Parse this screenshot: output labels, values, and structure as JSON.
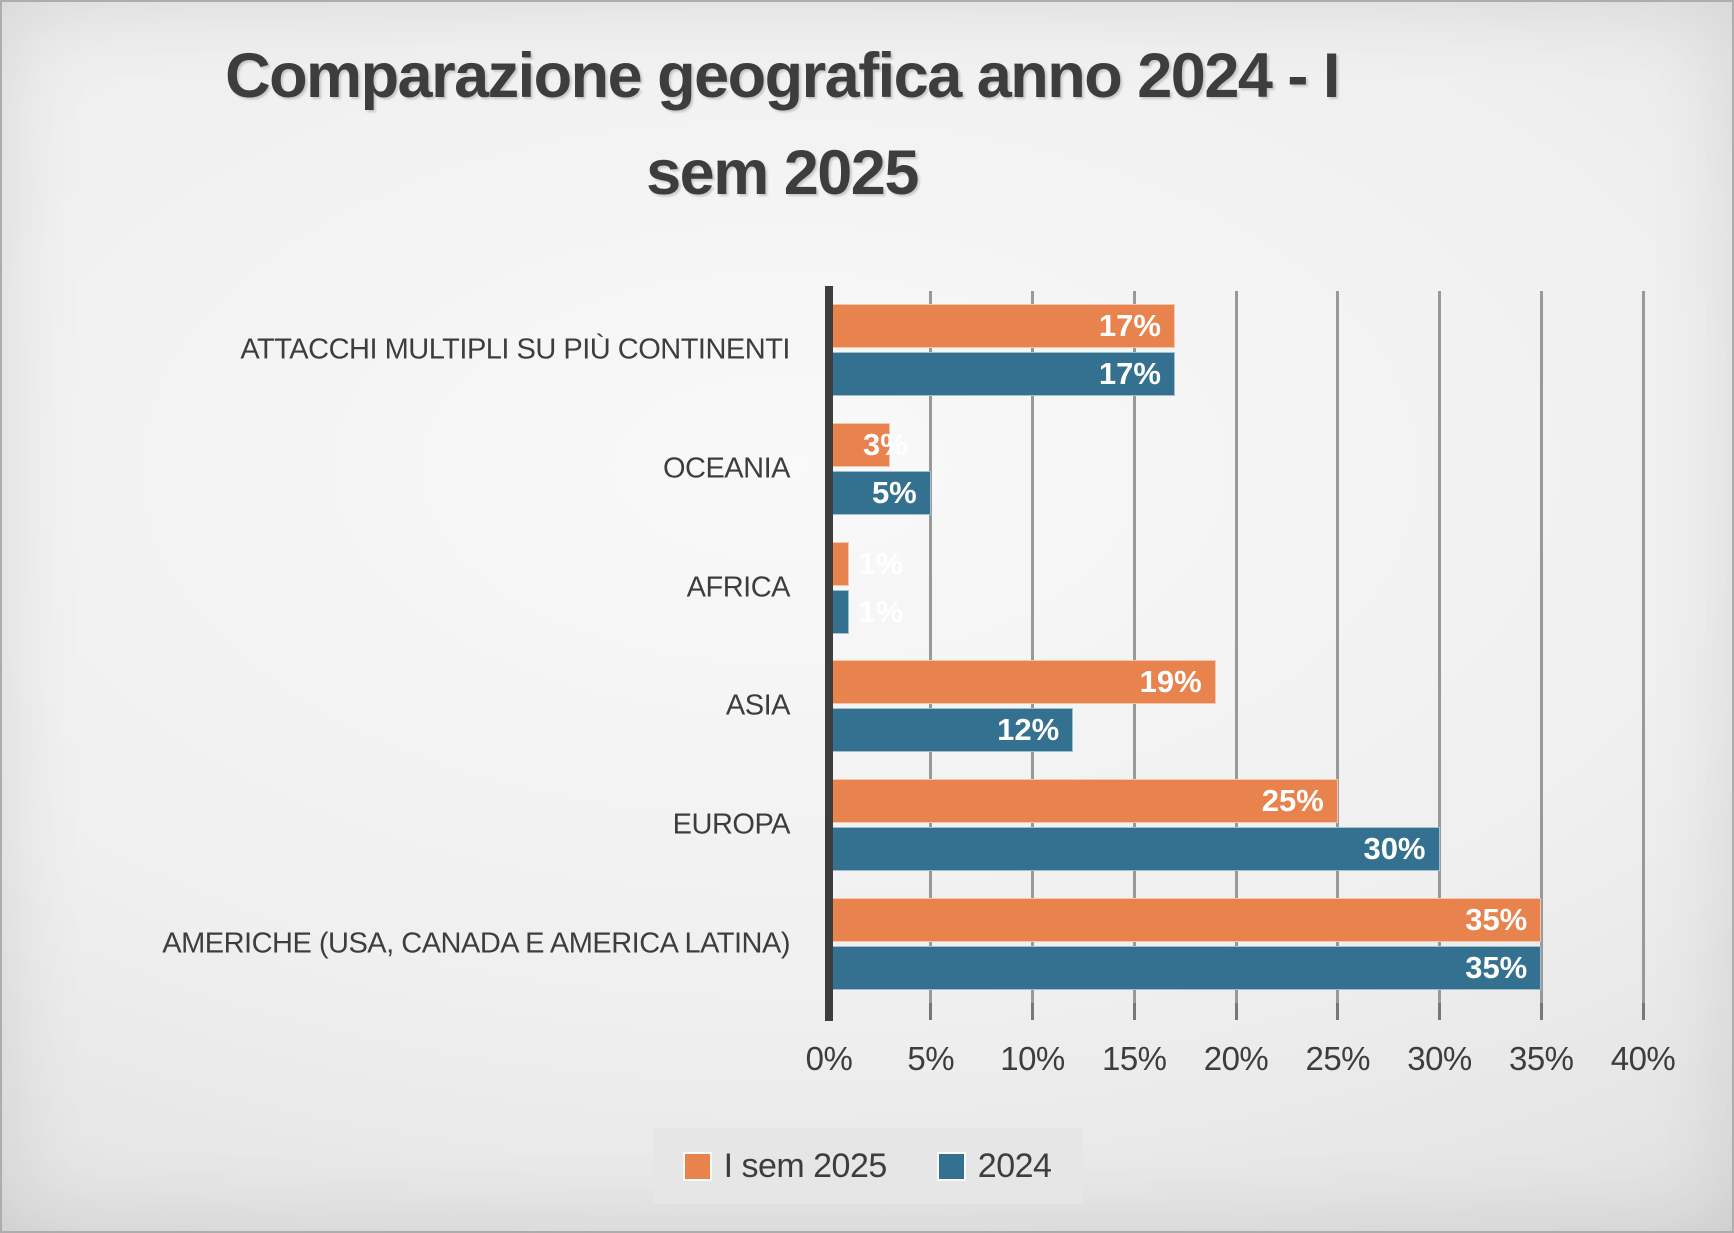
{
  "title": {
    "line1": "Comparazione geografica anno 2024 - I",
    "line2": "sem 2025"
  },
  "chart_data": {
    "type": "bar",
    "orientation": "horizontal",
    "title": "Comparazione geografica anno 2024 - I sem 2025",
    "categories": [
      "ATTACCHI MULTIPLI SU PIÙ CONTINENTI",
      "OCEANIA",
      "AFRICA",
      "ASIA",
      "EUROPA",
      "AMERICHE (USA, CANADA E AMERICA LATINA)"
    ],
    "series": [
      {
        "name": "I sem 2025",
        "color": "#E8834E",
        "values": [
          17,
          3,
          1,
          19,
          25,
          35
        ],
        "labels": [
          "17%",
          "3%",
          "1%",
          "19%",
          "25%",
          "35%"
        ]
      },
      {
        "name": "2024",
        "color": "#34708F",
        "values": [
          17,
          5,
          1,
          12,
          30,
          35
        ],
        "labels": [
          "17%",
          "5%",
          "1%",
          "12%",
          "30%",
          "35%"
        ]
      }
    ],
    "xlim": [
      0,
      40
    ],
    "x_tick_step": 5,
    "x_ticks": [
      "0%",
      "5%",
      "10%",
      "15%",
      "20%",
      "25%",
      "30%",
      "35%",
      "40%"
    ],
    "grid": true,
    "legend_position": "bottom",
    "value_label_color": "#FFFFFF"
  },
  "legend": {
    "entries": [
      {
        "label": "I sem 2025",
        "color": "#E8834E"
      },
      {
        "label": "2024",
        "color": "#34708F"
      }
    ]
  },
  "colors": {
    "background_center": "#f9f9f9",
    "background_edge": "#cccccc",
    "text": "#3d3d3d",
    "gridline": "#999999",
    "axis_line": "#3d3d3d",
    "tick": "#777777",
    "legend_background": "#e6e6e6",
    "series_orange": "#E8834E",
    "series_blue": "#34708F"
  }
}
